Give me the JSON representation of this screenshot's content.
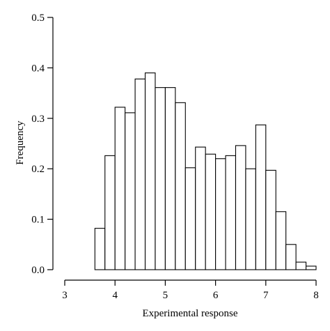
{
  "chart_data": {
    "type": "bar",
    "title": "",
    "xlabel": "Experimental response",
    "ylabel": "Frequency",
    "xlim": [
      3,
      8
    ],
    "ylim": [
      0,
      0.5
    ],
    "x_ticks": [
      "3",
      "4",
      "5",
      "6",
      "7",
      "8"
    ],
    "y_ticks": [
      "0.0",
      "0.1",
      "0.2",
      "0.3",
      "0.4",
      "0.5"
    ],
    "grid": false,
    "legend": "none",
    "bar_fill": "#ffffff",
    "bar_stroke": "#000000",
    "bins": [
      {
        "x0": 3.6,
        "x1": 3.8,
        "value": 0.082
      },
      {
        "x0": 3.8,
        "x1": 4.0,
        "value": 0.226
      },
      {
        "x0": 4.0,
        "x1": 4.2,
        "value": 0.322
      },
      {
        "x0": 4.2,
        "x1": 4.4,
        "value": 0.311
      },
      {
        "x0": 4.4,
        "x1": 4.6,
        "value": 0.378
      },
      {
        "x0": 4.6,
        "x1": 4.8,
        "value": 0.39
      },
      {
        "x0": 4.8,
        "x1": 5.0,
        "value": 0.361
      },
      {
        "x0": 5.0,
        "x1": 5.2,
        "value": 0.361
      },
      {
        "x0": 5.2,
        "x1": 5.4,
        "value": 0.331
      },
      {
        "x0": 5.4,
        "x1": 5.6,
        "value": 0.202
      },
      {
        "x0": 5.6,
        "x1": 5.8,
        "value": 0.243
      },
      {
        "x0": 5.8,
        "x1": 6.0,
        "value": 0.229
      },
      {
        "x0": 6.0,
        "x1": 6.2,
        "value": 0.22
      },
      {
        "x0": 6.2,
        "x1": 6.4,
        "value": 0.226
      },
      {
        "x0": 6.4,
        "x1": 6.6,
        "value": 0.246
      },
      {
        "x0": 6.6,
        "x1": 6.8,
        "value": 0.2
      },
      {
        "x0": 6.8,
        "x1": 7.0,
        "value": 0.287
      },
      {
        "x0": 7.0,
        "x1": 7.2,
        "value": 0.197
      },
      {
        "x0": 7.2,
        "x1": 7.4,
        "value": 0.115
      },
      {
        "x0": 7.4,
        "x1": 7.6,
        "value": 0.05
      },
      {
        "x0": 7.6,
        "x1": 7.8,
        "value": 0.015
      },
      {
        "x0": 7.8,
        "x1": 8.0,
        "value": 0.007
      }
    ]
  }
}
